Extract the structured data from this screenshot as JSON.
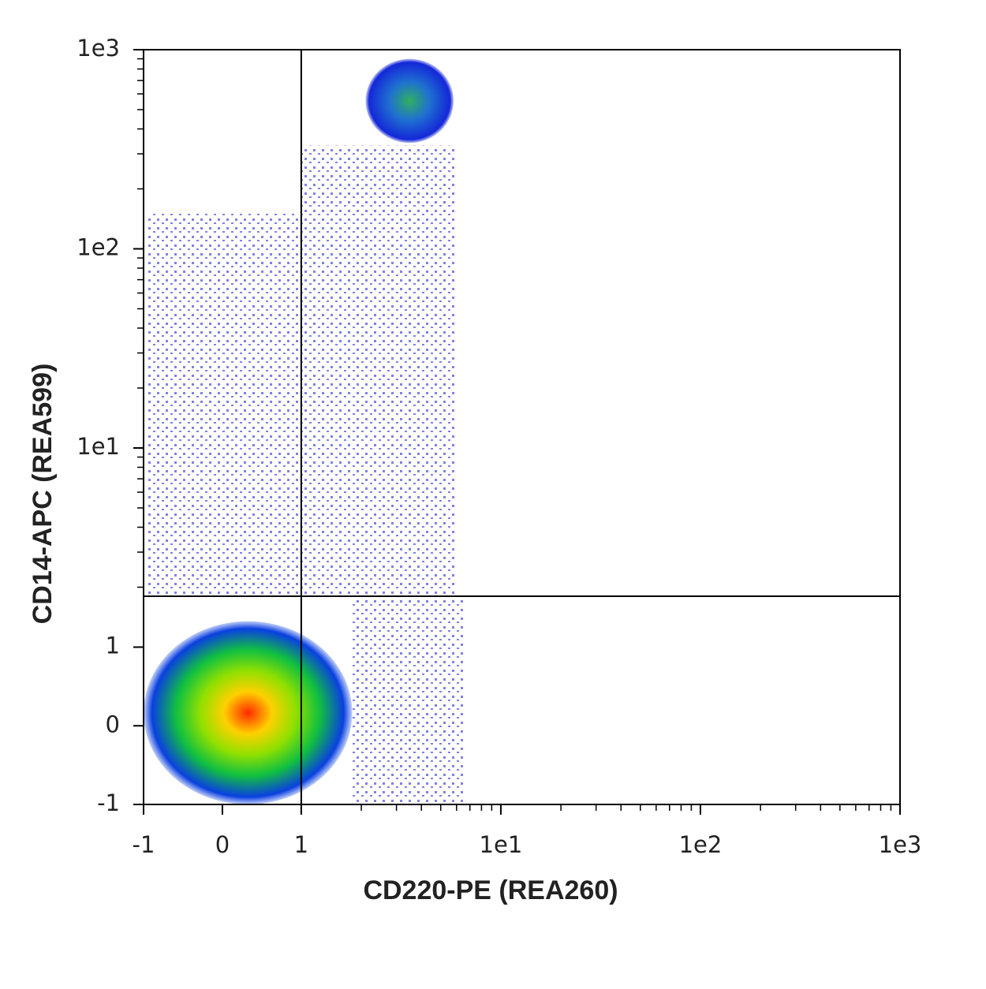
{
  "chart_data": {
    "type": "density",
    "x_label": "CD220-PE (REA260)",
    "y_label": "CD14-APC (REA599)",
    "xscale": "biexponential",
    "yscale": "biexponential",
    "linthresh": 1,
    "xlim": [
      -1,
      1000
    ],
    "ylim": [
      -1,
      1000
    ],
    "xticks": [
      -1,
      0,
      1,
      {
        "value": 10,
        "label": "1e1"
      },
      {
        "value": 100,
        "label": "1e2"
      },
      {
        "value": 1000,
        "label": "1e3"
      }
    ],
    "yticks": [
      -1,
      0,
      1,
      {
        "value": 10,
        "label": "1e1"
      },
      {
        "value": 100,
        "label": "1e2"
      },
      {
        "value": 1000,
        "label": "1e3"
      }
    ],
    "xminor": [
      2,
      3,
      4,
      5,
      6,
      7,
      8,
      9,
      20,
      30,
      40,
      50,
      60,
      70,
      80,
      90,
      200,
      300,
      400,
      500,
      600,
      700,
      800,
      900
    ],
    "yminor": [
      2,
      3,
      4,
      5,
      6,
      7,
      8,
      9,
      20,
      30,
      40,
      50,
      60,
      70,
      80,
      90,
      200,
      300,
      400,
      500,
      600,
      700,
      800,
      900
    ],
    "quadrant": {
      "x": 1,
      "y": 1.8,
      "color": "#000000"
    },
    "populations": [
      {
        "style": "sparse",
        "xrange": [
          -0.95,
          1
        ],
        "yrange": [
          1.8,
          150
        ],
        "colors": [
          "#1a1ad0"
        ]
      },
      {
        "style": "sparse",
        "xrange": [
          1,
          6
        ],
        "yrange": [
          1.8,
          330
        ],
        "colors": [
          "#1a1ad0"
        ]
      },
      {
        "style": "sparse",
        "xrange": [
          1.8,
          6.5
        ],
        "yrange": [
          -1,
          1.8
        ],
        "colors": [
          "#1a1ad0"
        ]
      },
      {
        "style": "dense",
        "xrange": [
          -1,
          1.8
        ],
        "yrange": [
          -1,
          1.35
        ],
        "colors": [
          "#ff2a00",
          "#ffd000",
          "#90e000",
          "#10c040",
          "#0a40e0"
        ]
      },
      {
        "style": "dense",
        "xrange": [
          2.1,
          5.8
        ],
        "yrange": [
          340,
          900
        ],
        "colors": [
          "#30b060",
          "#1f70d0",
          "#1428d8"
        ]
      }
    ]
  }
}
